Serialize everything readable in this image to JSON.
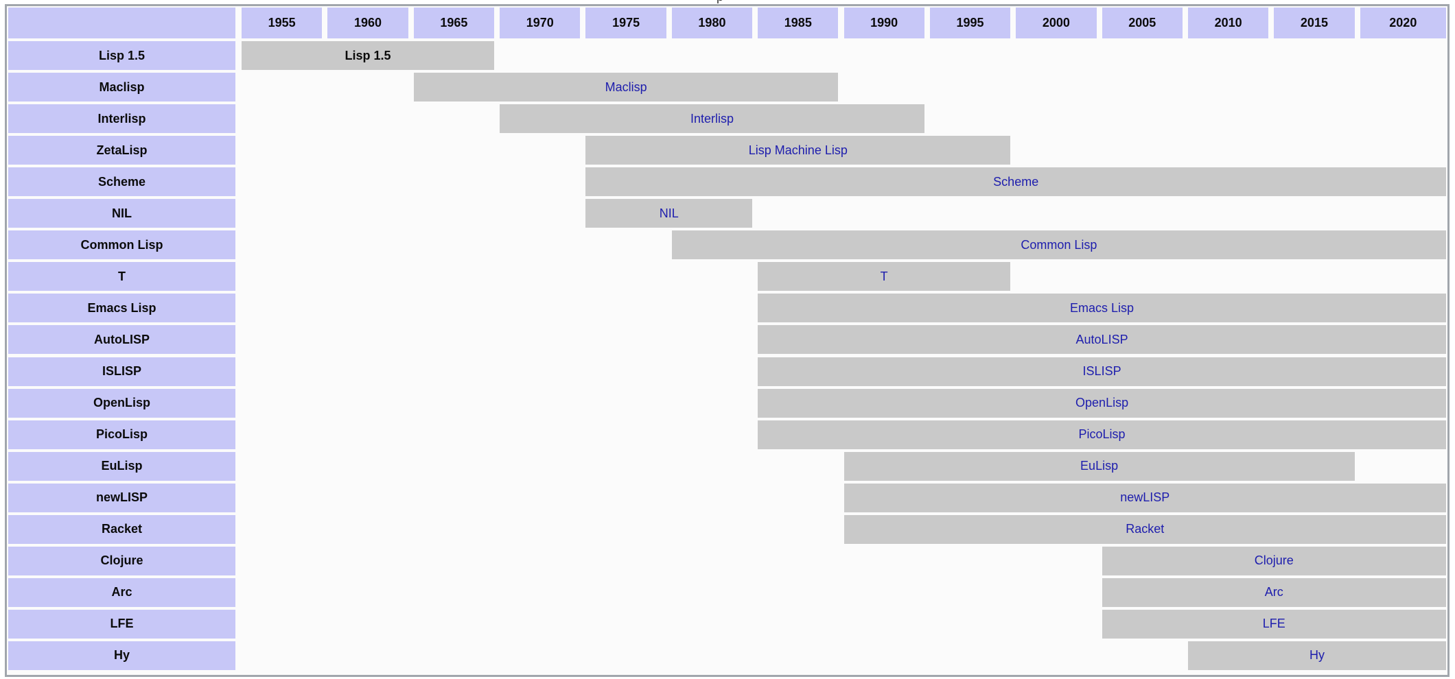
{
  "page": {
    "clipped_text_fragment": "p"
  },
  "colors": {
    "header_bg": "#c7c7f7",
    "bar_bg": "#c9c9c9",
    "link_text": "#1d1dad",
    "plain_text": "#0b0b0b",
    "table_border": "#a1a6ac",
    "table_bg": "#fbfbfb",
    "page_bg": "#ffffff"
  },
  "chart_data": {
    "type": "bar",
    "subtype": "timeline-gantt",
    "title": "",
    "xlabel": "",
    "ylabel": "",
    "tick_unit": "year",
    "x_ticks": [
      1955,
      1960,
      1965,
      1970,
      1975,
      1980,
      1985,
      1990,
      1995,
      2000,
      2005,
      2010,
      2015,
      2020
    ],
    "x_domain": [
      1955,
      2025
    ],
    "grid": "off",
    "legend": "none",
    "rows": [
      {
        "label": "Lisp 1.5",
        "bar_label": "Lisp 1.5",
        "start": 1955,
        "end": 1970,
        "ongoing": false,
        "link": false
      },
      {
        "label": "Maclisp",
        "bar_label": "Maclisp",
        "start": 1965,
        "end": 1990,
        "ongoing": false,
        "link": true
      },
      {
        "label": "Interlisp",
        "bar_label": "Interlisp",
        "start": 1970,
        "end": 1995,
        "ongoing": false,
        "link": true
      },
      {
        "label": "ZetaLisp",
        "bar_label": "Lisp Machine Lisp",
        "start": 1975,
        "end": 2000,
        "ongoing": false,
        "link": true
      },
      {
        "label": "Scheme",
        "bar_label": "Scheme",
        "start": 1975,
        "end": 2025,
        "ongoing": true,
        "link": true
      },
      {
        "label": "NIL",
        "bar_label": "NIL",
        "start": 1975,
        "end": 1985,
        "ongoing": false,
        "link": true
      },
      {
        "label": "Common Lisp",
        "bar_label": "Common Lisp",
        "start": 1980,
        "end": 2025,
        "ongoing": true,
        "link": true
      },
      {
        "label": "T",
        "bar_label": "T",
        "start": 1985,
        "end": 2000,
        "ongoing": false,
        "link": true
      },
      {
        "label": "Emacs Lisp",
        "bar_label": "Emacs Lisp",
        "start": 1985,
        "end": 2025,
        "ongoing": true,
        "link": true
      },
      {
        "label": "AutoLISP",
        "bar_label": "AutoLISP",
        "start": 1985,
        "end": 2025,
        "ongoing": true,
        "link": true
      },
      {
        "label": "ISLISP",
        "bar_label": "ISLISP",
        "start": 1985,
        "end": 2025,
        "ongoing": true,
        "link": true
      },
      {
        "label": "OpenLisp",
        "bar_label": "OpenLisp",
        "start": 1985,
        "end": 2025,
        "ongoing": true,
        "link": true
      },
      {
        "label": "PicoLisp",
        "bar_label": "PicoLisp",
        "start": 1985,
        "end": 2025,
        "ongoing": true,
        "link": true
      },
      {
        "label": "EuLisp",
        "bar_label": "EuLisp",
        "start": 1990,
        "end": 2020,
        "ongoing": false,
        "link": true
      },
      {
        "label": "newLISP",
        "bar_label": "newLISP",
        "start": 1990,
        "end": 2025,
        "ongoing": true,
        "link": true
      },
      {
        "label": "Racket",
        "bar_label": "Racket",
        "start": 1990,
        "end": 2025,
        "ongoing": true,
        "link": true
      },
      {
        "label": "Clojure",
        "bar_label": "Clojure",
        "start": 2005,
        "end": 2025,
        "ongoing": true,
        "link": true
      },
      {
        "label": "Arc",
        "bar_label": "Arc",
        "start": 2005,
        "end": 2025,
        "ongoing": true,
        "link": true
      },
      {
        "label": "LFE",
        "bar_label": "LFE",
        "start": 2005,
        "end": 2025,
        "ongoing": true,
        "link": true
      },
      {
        "label": "Hy",
        "bar_label": "Hy",
        "start": 2010,
        "end": 2025,
        "ongoing": true,
        "link": true
      }
    ]
  }
}
